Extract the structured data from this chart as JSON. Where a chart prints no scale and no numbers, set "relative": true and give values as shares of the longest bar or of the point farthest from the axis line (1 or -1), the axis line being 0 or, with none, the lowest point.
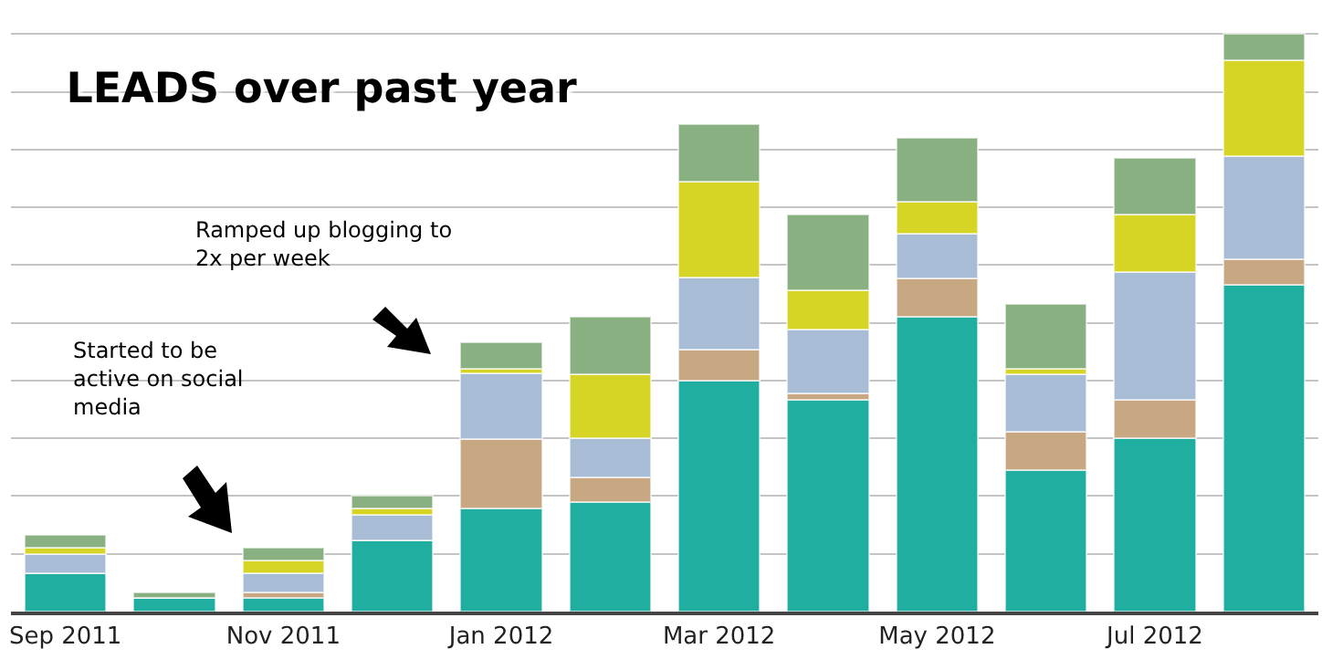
{
  "chart_data": {
    "type": "bar",
    "title": "LEADS over past year",
    "stacked": true,
    "relative": true,
    "grid": "y",
    "categories": [
      "Sep 2011",
      null,
      "Nov 2011",
      null,
      "Jan 2012",
      null,
      "Mar 2012",
      null,
      "May 2012",
      null,
      "Jul 2012",
      null
    ],
    "series": [
      {
        "color": "#20aea0",
        "values": [
          0.066,
          0.023,
          0.023,
          0.123,
          0.178,
          0.189,
          0.4,
          0.367,
          0.51,
          0.245,
          0.3,
          0.566
        ]
      },
      {
        "color": "#c8a882",
        "values": [
          0,
          0,
          0.01,
          0,
          0.121,
          0.044,
          0.054,
          0.011,
          0.067,
          0.066,
          0.066,
          0.044
        ]
      },
      {
        "color": "#a8bcd6",
        "values": [
          0.034,
          0,
          0.034,
          0.044,
          0.113,
          0.068,
          0.124,
          0.11,
          0.078,
          0.1,
          0.222,
          0.178
        ]
      },
      {
        "color": "#d6d424",
        "values": [
          0.011,
          0,
          0.022,
          0.011,
          0.009,
          0.11,
          0.167,
          0.068,
          0.055,
          0.009,
          0.1,
          0.166
        ]
      },
      {
        "color": "#88b080",
        "values": [
          0.022,
          0.01,
          0.022,
          0.022,
          0.046,
          0.099,
          0.099,
          0.132,
          0.11,
          0.112,
          0.098,
          0.046
        ]
      }
    ],
    "annotations": [
      "Started to be\nactive on social\nmedia",
      "Ramped up blogging to\n2x per week"
    ]
  }
}
